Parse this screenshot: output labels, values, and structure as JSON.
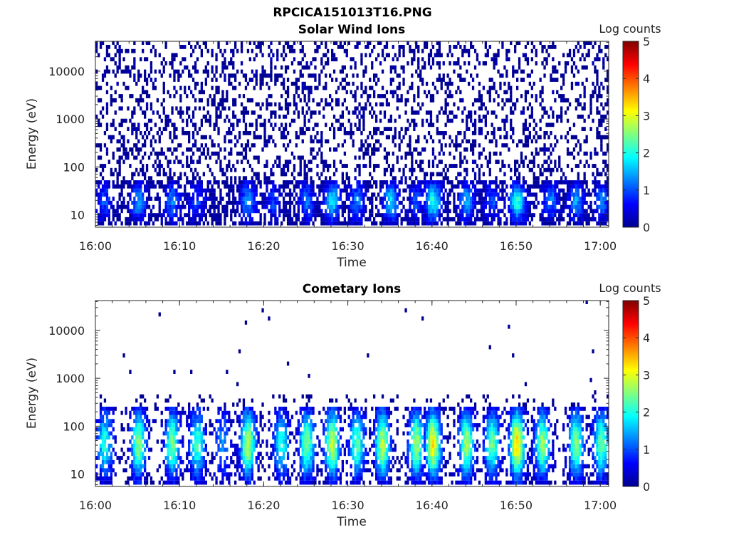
{
  "figure": {
    "filename": "RPCICA151013T16.PNG"
  },
  "colormap": {
    "name": "jet",
    "colors": [
      "#00008f",
      "#0000ff",
      "#0080ff",
      "#00ffff",
      "#80ff80",
      "#ffff00",
      "#ff8000",
      "#ff0000",
      "#800000"
    ]
  },
  "chart_data": [
    {
      "type": "heatmap",
      "title": "Solar Wind Ions",
      "xlabel": "Time",
      "ylabel": "Energy (eV)",
      "xlim": [
        "16:00",
        "17:01"
      ],
      "yscale": "log",
      "ylim": [
        5.5,
        42000
      ],
      "x_ticks": [
        "16:00",
        "16:10",
        "16:20",
        "16:30",
        "16:40",
        "16:50",
        "17:00"
      ],
      "y_ticks": [
        "10",
        "100",
        "1000",
        "10000"
      ],
      "y_tick_values": [
        10,
        100,
        1000,
        10000
      ],
      "colorbar": {
        "label": "Log counts",
        "range": [
          0,
          5
        ],
        "ticks": [
          "0",
          "1",
          "2",
          "3",
          "4",
          "5"
        ]
      },
      "description_values": {
        "time_bin_minutes": 0.25,
        "max_log_counts_observed": 2.2,
        "background": "sparse single counts (log ≈ 0) at all energies 10–40000 eV",
        "core_band_eV": [
          6,
          50
        ]
      },
      "bursts": [
        {
          "t": "16:01",
          "log_counts": 1.0
        },
        {
          "t": "16:05",
          "log_counts": 1.4
        },
        {
          "t": "16:09",
          "log_counts": 1.2
        },
        {
          "t": "16:12",
          "log_counts": 0.9
        },
        {
          "t": "16:18",
          "log_counts": 1.4
        },
        {
          "t": "16:21",
          "log_counts": 0.9
        },
        {
          "t": "16:25",
          "log_counts": 1.2
        },
        {
          "t": "16:28",
          "log_counts": 1.8
        },
        {
          "t": "16:31",
          "log_counts": 1.3
        },
        {
          "t": "16:35",
          "log_counts": 1.7
        },
        {
          "t": "16:38",
          "log_counts": 1.0
        },
        {
          "t": "16:40",
          "log_counts": 2.0
        },
        {
          "t": "16:44",
          "log_counts": 1.5
        },
        {
          "t": "16:47",
          "log_counts": 1.0
        },
        {
          "t": "16:50",
          "log_counts": 2.1
        },
        {
          "t": "16:54",
          "log_counts": 1.2
        },
        {
          "t": "16:57",
          "log_counts": 1.4
        },
        {
          "t": "17:00",
          "log_counts": 1.2
        }
      ]
    },
    {
      "type": "heatmap",
      "title": "Cometary Ions",
      "xlabel": "Time",
      "ylabel": "Energy (eV)",
      "xlim": [
        "16:00",
        "17:01"
      ],
      "yscale": "log",
      "ylim": [
        5.5,
        42000
      ],
      "x_ticks": [
        "16:00",
        "16:10",
        "16:20",
        "16:30",
        "16:40",
        "16:50",
        "17:00"
      ],
      "y_ticks": [
        "10",
        "100",
        "1000",
        "10000"
      ],
      "y_tick_values": [
        10,
        100,
        1000,
        10000
      ],
      "colorbar": {
        "label": "Log counts",
        "range": [
          0,
          5
        ],
        "ticks": [
          "0",
          "1",
          "2",
          "3",
          "4",
          "5"
        ]
      },
      "description_values": {
        "time_bin_minutes": 0.25,
        "max_log_counts_observed": 3.3,
        "background": "very sparse single counts above 300 eV",
        "core_band_eV": [
          6,
          250
        ]
      },
      "bursts": [
        {
          "t": "16:01",
          "log_counts": 2.0
        },
        {
          "t": "16:05",
          "log_counts": 2.6
        },
        {
          "t": "16:09",
          "log_counts": 2.4
        },
        {
          "t": "16:12",
          "log_counts": 2.2
        },
        {
          "t": "16:15",
          "log_counts": 1.4
        },
        {
          "t": "16:18",
          "log_counts": 2.8
        },
        {
          "t": "16:22",
          "log_counts": 2.0
        },
        {
          "t": "16:25",
          "log_counts": 2.5
        },
        {
          "t": "16:28",
          "log_counts": 2.9
        },
        {
          "t": "16:31",
          "log_counts": 2.3
        },
        {
          "t": "16:34",
          "log_counts": 2.8
        },
        {
          "t": "16:38",
          "log_counts": 2.7
        },
        {
          "t": "16:40",
          "log_counts": 3.2
        },
        {
          "t": "16:44",
          "log_counts": 2.7
        },
        {
          "t": "16:47",
          "log_counts": 2.4
        },
        {
          "t": "16:50",
          "log_counts": 3.3
        },
        {
          "t": "16:53",
          "log_counts": 2.6
        },
        {
          "t": "16:57",
          "log_counts": 2.5
        },
        {
          "t": "17:00",
          "log_counts": 2.4
        }
      ]
    }
  ]
}
